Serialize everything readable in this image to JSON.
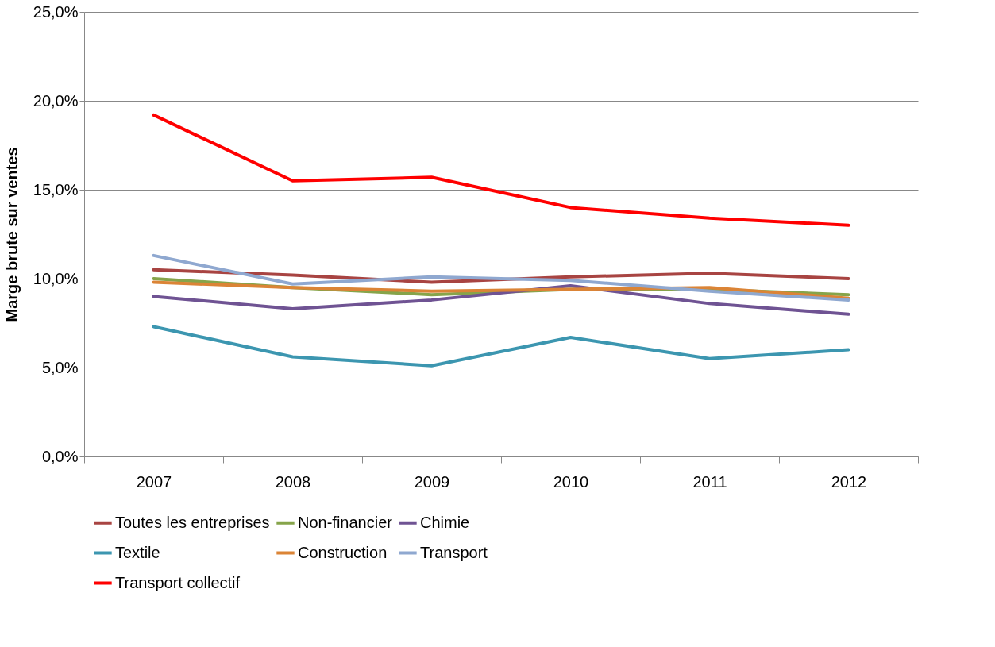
{
  "chart_data": {
    "type": "line",
    "ylabel": "Marge brute sur ventes",
    "categories": [
      "2007",
      "2008",
      "2009",
      "2010",
      "2011",
      "2012"
    ],
    "series": [
      {
        "name": "Toutes les entreprises",
        "color": "#a84442",
        "values": [
          10.5,
          10.2,
          9.8,
          10.1,
          10.3,
          10.0
        ]
      },
      {
        "name": "Non-financier",
        "color": "#86a44a",
        "values": [
          10.0,
          9.5,
          9.1,
          9.4,
          9.4,
          9.1
        ]
      },
      {
        "name": "Chimie",
        "color": "#6f5393",
        "values": [
          9.0,
          8.3,
          8.8,
          9.6,
          8.6,
          8.0
        ]
      },
      {
        "name": "Textile",
        "color": "#3c96b0",
        "values": [
          7.3,
          5.6,
          5.1,
          6.7,
          5.5,
          6.0
        ]
      },
      {
        "name": "Construction",
        "color": "#db8436",
        "values": [
          9.8,
          9.5,
          9.3,
          9.4,
          9.5,
          8.9
        ]
      },
      {
        "name": "Transport",
        "color": "#8fa8d0",
        "values": [
          11.3,
          9.7,
          10.1,
          9.9,
          9.3,
          8.8
        ]
      },
      {
        "name": "Transport collectif",
        "color": "#ff0000",
        "values": [
          19.2,
          15.5,
          15.7,
          14.0,
          13.4,
          13.0
        ]
      }
    ],
    "ylim": [
      0,
      25
    ],
    "yticks": [
      {
        "value": 0,
        "label": "0,0%"
      },
      {
        "value": 5,
        "label": "5,0%"
      },
      {
        "value": 10,
        "label": "10,0%"
      },
      {
        "value": 15,
        "label": "15,0%"
      },
      {
        "value": 20,
        "label": "20,0%"
      },
      {
        "value": 25,
        "label": "25,0%"
      }
    ],
    "grid": "y",
    "legend": "bottom",
    "marker": "none",
    "line_style": "solid"
  }
}
